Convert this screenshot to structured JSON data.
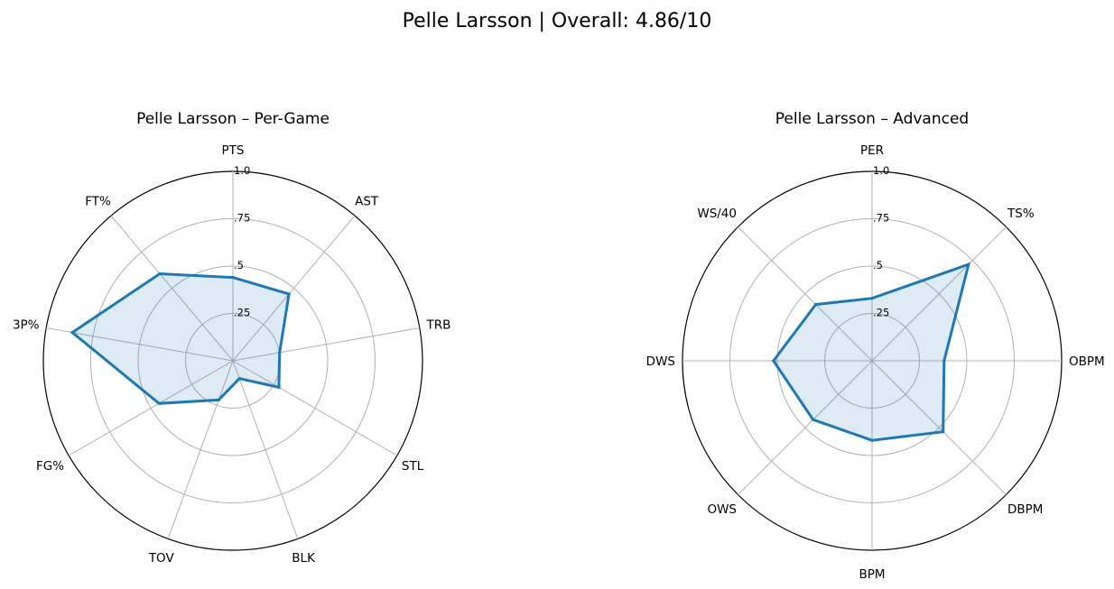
{
  "figure": {
    "title": "Pelle Larsson | Overall: 4.86/10"
  },
  "chart_data": [
    {
      "type": "radar",
      "title": "Pelle Larsson – Per-Game",
      "categories": [
        "PTS",
        "AST",
        "TRB",
        "STL",
        "BLK",
        "TOV",
        "FG%",
        "3P%",
        "FT%"
      ],
      "values": [
        0.44,
        0.46,
        0.25,
        0.28,
        0.1,
        0.22,
        0.45,
        0.86,
        0.6
      ],
      "rlim": [
        0,
        1.0
      ],
      "rticks": [
        0.25,
        0.5,
        0.75,
        1.0
      ],
      "rtick_labels": [
        ".25",
        ".5",
        ".75",
        "1.0"
      ],
      "grid": true,
      "line_color": "#1f77b4"
    },
    {
      "type": "radar",
      "title": "Pelle Larsson – Advanced",
      "categories": [
        "PER",
        "TS%",
        "OBPM",
        "DBPM",
        "BPM",
        "OWS",
        "DWS",
        "WS/40"
      ],
      "values": [
        0.33,
        0.72,
        0.38,
        0.53,
        0.42,
        0.44,
        0.52,
        0.42
      ],
      "rlim": [
        0,
        1.0
      ],
      "rticks": [
        0.25,
        0.5,
        0.75,
        1.0
      ],
      "rtick_labels": [
        ".25",
        ".5",
        ".75",
        "1.0"
      ],
      "grid": true,
      "line_color": "#1f77b4"
    }
  ]
}
